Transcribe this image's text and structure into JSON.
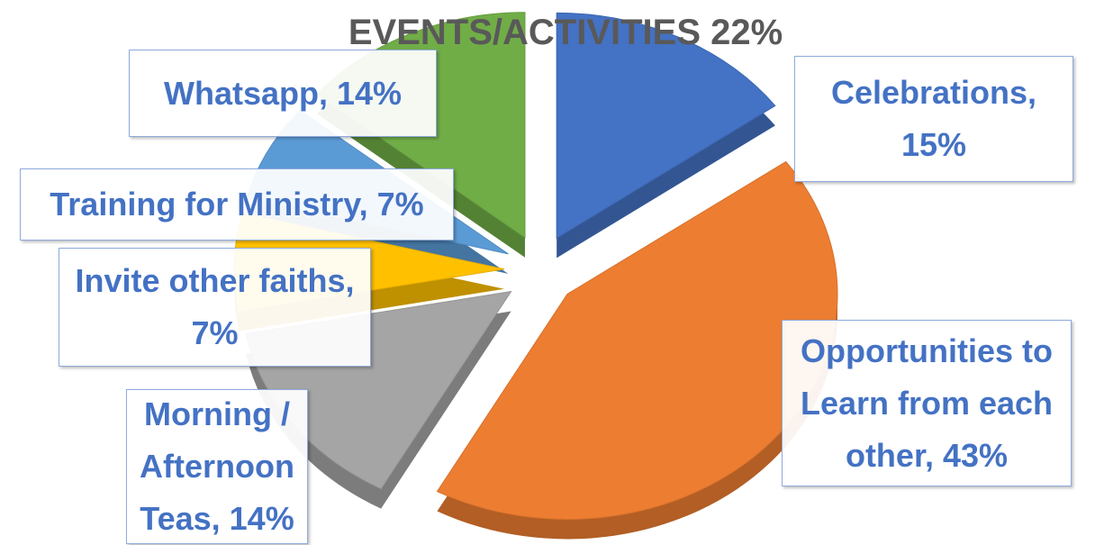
{
  "chart_data": {
    "type": "pie",
    "title": "EVENTS/ACTIVITIES 22%",
    "values": [
      15,
      43,
      14,
      7,
      7,
      14
    ],
    "value_labels": [
      "Celebrations, 15%",
      "Opportunities to Learn from each other, 43%",
      "Morning / Afternoon Teas, 14%",
      "Invite other faiths, 7%",
      "Training for Ministry, 7%",
      "Whatsapp, 14%"
    ],
    "colors": [
      "#4472c4",
      "#ed7d31",
      "#a5a5a5",
      "#ffc000",
      "#5b9bd5",
      "#70ad47"
    ]
  }
}
